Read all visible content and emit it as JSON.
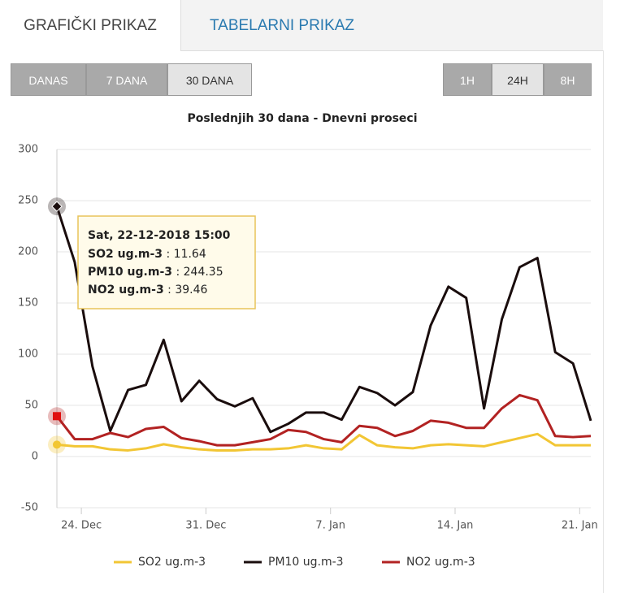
{
  "tabs": [
    "GRAFIČKI PRIKAZ",
    "TABELARNI PRIKAZ"
  ],
  "range_buttons": [
    "DANAS",
    "7 DANA",
    "30 DANA"
  ],
  "interval_buttons": [
    "1H",
    "24H",
    "8H"
  ],
  "chart_data": {
    "type": "line",
    "title": "Poslednjih 30 dana - Dnevni proseci",
    "x": [
      "2018-12-22 15:00",
      "2018-12-23 15:00",
      "2018-12-24 15:00",
      "2018-12-25 15:00",
      "2018-12-26 15:00",
      "2018-12-27 15:00",
      "2018-12-28 15:00",
      "2018-12-29 15:00",
      "2018-12-30 15:00",
      "2018-12-31 15:00",
      "2019-01-01 15:00",
      "2019-01-02 15:00",
      "2019-01-03 15:00",
      "2019-01-04 15:00",
      "2019-01-05 15:00",
      "2019-01-06 15:00",
      "2019-01-07 15:00",
      "2019-01-08 15:00",
      "2019-01-09 15:00",
      "2019-01-10 15:00",
      "2019-01-11 15:00",
      "2019-01-12 15:00",
      "2019-01-13 15:00",
      "2019-01-14 15:00",
      "2019-01-15 15:00",
      "2019-01-16 15:00",
      "2019-01-17 15:00",
      "2019-01-18 15:00",
      "2019-01-19 15:00",
      "2019-01-20 15:00",
      "2019-01-21 15:00"
    ],
    "series": [
      {
        "name": "SO2 ug.m-3",
        "color": "#f2c634",
        "values": [
          11.64,
          10,
          10,
          7,
          6,
          8,
          12,
          9,
          7,
          6,
          6,
          7,
          7,
          8,
          11,
          8,
          7,
          21,
          11,
          9,
          8,
          11,
          12,
          11,
          10,
          14,
          18,
          22,
          11,
          11,
          11
        ]
      },
      {
        "name": "PM10 ug.m-3",
        "color": "#1a0d0d",
        "values": [
          244.35,
          190,
          88,
          25,
          65,
          70,
          114,
          54,
          74,
          56,
          49,
          57,
          24,
          32,
          43,
          43,
          36,
          68,
          62,
          50,
          63,
          128,
          166,
          155,
          47,
          134,
          185,
          194,
          102,
          91,
          35
        ]
      },
      {
        "name": "NO2 ug.m-3",
        "color": "#b22222",
        "values": [
          39.46,
          17,
          17,
          23,
          19,
          27,
          29,
          18,
          15,
          11,
          11,
          14,
          17,
          26,
          24,
          17,
          14,
          30,
          28,
          20,
          25,
          35,
          33,
          28,
          28,
          47,
          60,
          55,
          20,
          19,
          20
        ]
      }
    ],
    "xlim": [
      "2018-12-22 15:00",
      "2019-01-21 15:00"
    ],
    "xticks": [
      {
        "value": "2018-12-24",
        "label": "24. Dec"
      },
      {
        "value": "2018-12-31",
        "label": "31. Dec"
      },
      {
        "value": "2019-01-07",
        "label": "7. Jan"
      },
      {
        "value": "2019-01-14",
        "label": "14. Jan"
      },
      {
        "value": "2019-01-21",
        "label": "21. Jan"
      }
    ],
    "ylim": [
      -50,
      300
    ],
    "yticks": [
      -50,
      0,
      50,
      100,
      150,
      200,
      250,
      300
    ],
    "grid": true,
    "tooltip": {
      "title": "Sat, 22-12-2018 15:00",
      "index": 0
    }
  }
}
